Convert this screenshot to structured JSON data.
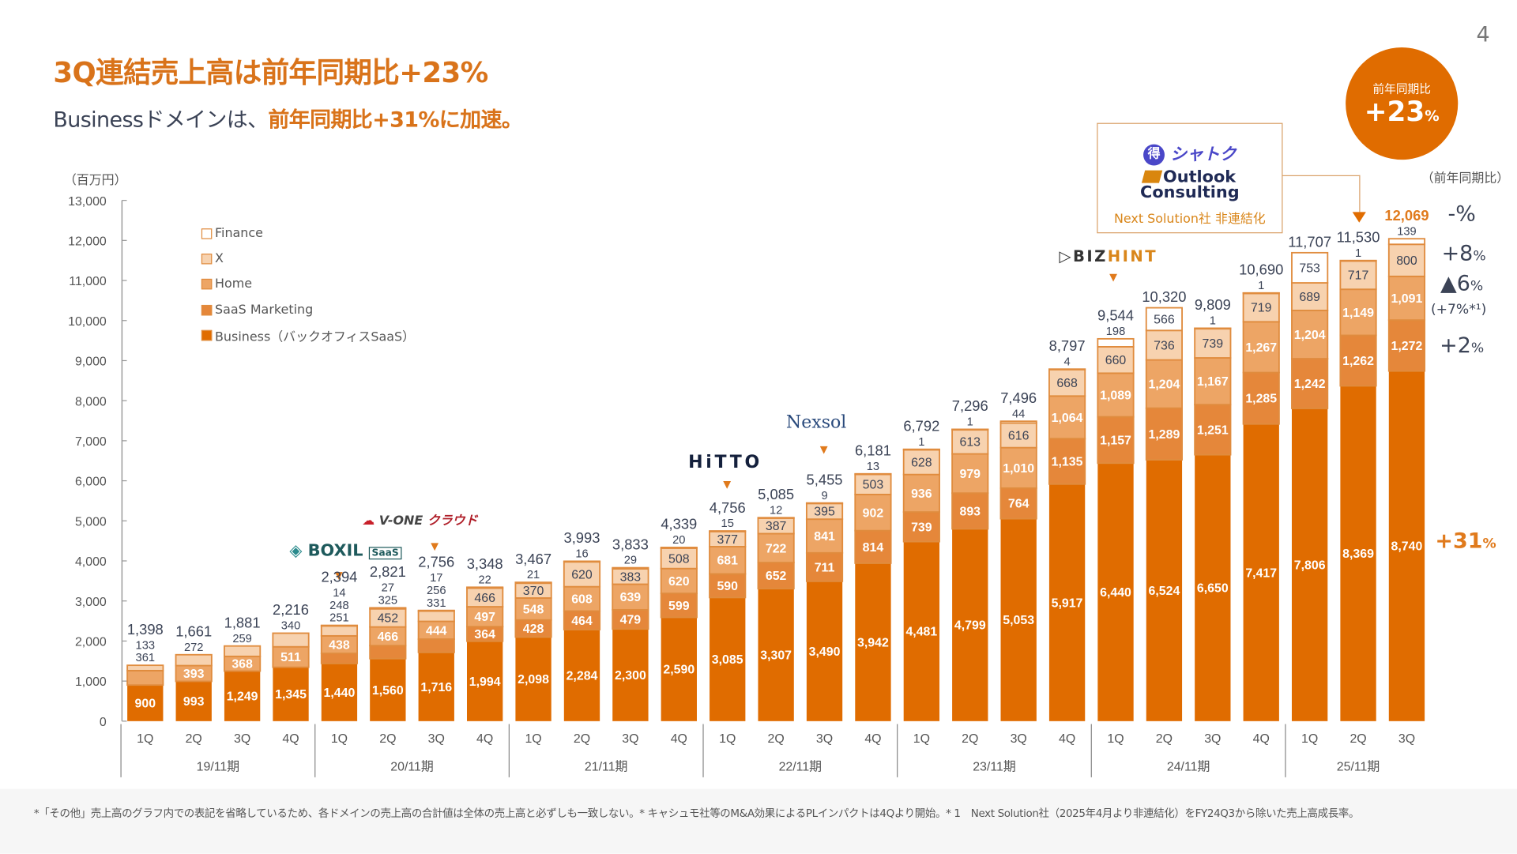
{
  "page_number": "4",
  "header": {
    "title": "3Q連結売上高は前年同期比+23%",
    "subtitle_prefix": "Businessドメインは、",
    "subtitle_highlight": "前年同期比+31%に加速。"
  },
  "badge": {
    "label": "前年同期比",
    "value": "+23",
    "unit": "%"
  },
  "callout": {
    "logo_shatoku_badge": "得",
    "logo_shatoku": "シャトク",
    "logo_outlook_1": "Outlook",
    "logo_outlook_2": "Consulting",
    "note": "Next Solution社 非連結化"
  },
  "logos": {
    "boxil": "BOXIL",
    "boxil_tag": "SaaS",
    "vone": "V-ONE",
    "vone_tag": "クラウド",
    "hitto": "HiTTO",
    "nexsol": "Nexsol",
    "bizhint_1": "BIZ",
    "bizhint_2": "HINT"
  },
  "yoy": {
    "header": "（前年同期比）",
    "finance": "-%",
    "x": "+8",
    "home": "▲6",
    "home_note": "(+7%*¹)",
    "saas": "+2",
    "business": "+31",
    "unit": "%"
  },
  "colors": {
    "business": "#E06C00",
    "saas_marketing": "#E5873A",
    "home": "#EDA565",
    "x": "#F7D2AF",
    "finance": "#FFFFFF",
    "accent": "#E06C00",
    "text": "#3b4356"
  },
  "footnote": "*「その他」売上高のグラフ内での表記を省略しているため、各ドメインの売上高の合計値は全体の売上高と必ずしも一致しない。* キャシュモ社等のM&A効果によるPLインパクトは4Qより開始。* 1　Next Solution社（2025年4月より非連結化）をFY24Q3から除いた売上高成長率。",
  "chart_data": {
    "type": "bar",
    "stacked": true,
    "ylabel": "（百万円）",
    "ylim": [
      0,
      13000
    ],
    "yticks": [
      "0",
      "1,000",
      "2,000",
      "3,000",
      "4,000",
      "5,000",
      "6,000",
      "7,000",
      "8,000",
      "9,000",
      "10,000",
      "11,000",
      "12,000",
      "13,000"
    ],
    "legend_position": "top-left",
    "legend": [
      "Finance",
      "X",
      "Home",
      "SaaS Marketing",
      "Business（バックオフィスSaaS）"
    ],
    "groups": [
      {
        "label": "19/11期",
        "quarters": [
          "1Q",
          "2Q",
          "3Q",
          "4Q"
        ]
      },
      {
        "label": "20/11期",
        "quarters": [
          "1Q",
          "2Q",
          "3Q",
          "4Q"
        ]
      },
      {
        "label": "21/11期",
        "quarters": [
          "1Q",
          "2Q",
          "3Q",
          "4Q"
        ]
      },
      {
        "label": "22/11期",
        "quarters": [
          "1Q",
          "2Q",
          "3Q",
          "4Q"
        ]
      },
      {
        "label": "23/11期",
        "quarters": [
          "1Q",
          "2Q",
          "3Q",
          "4Q"
        ]
      },
      {
        "label": "24/11期",
        "quarters": [
          "1Q",
          "2Q",
          "3Q",
          "4Q"
        ]
      },
      {
        "label": "25/11期",
        "quarters": [
          "1Q",
          "2Q",
          "3Q"
        ]
      }
    ],
    "totals": [
      "1,398",
      "1,661",
      "1,881",
      "2,216",
      "2,394",
      "2,821",
      "2,756",
      "3,348",
      "3,467",
      "3,993",
      "3,833",
      "4,339",
      "4,756",
      "5,085",
      "5,455",
      "6,181",
      "6,792",
      "7,296",
      "7,496",
      "8,797",
      "9,544",
      "10,320",
      "9,809",
      "10,690",
      "11,707",
      "11,530",
      "12,069"
    ],
    "series": [
      {
        "name": "Business（バックオフィスSaaS）",
        "key": "business",
        "values": [
          900,
          993,
          1249,
          1345,
          1440,
          1560,
          1716,
          1994,
          2098,
          2284,
          2300,
          2590,
          3085,
          3307,
          3490,
          3942,
          4481,
          4799,
          5053,
          5917,
          6440,
          6524,
          6650,
          7417,
          7806,
          8369,
          8740
        ]
      },
      {
        "name": "SaaS Marketing",
        "key": "saas_marketing",
        "values": [
          null,
          null,
          null,
          null,
          251,
          325,
          331,
          364,
          428,
          464,
          479,
          599,
          590,
          652,
          711,
          814,
          739,
          893,
          764,
          1135,
          1157,
          1289,
          1251,
          1285,
          1242,
          1262,
          1272
        ]
      },
      {
        "name": "Home",
        "key": "home",
        "values": [
          361,
          393,
          368,
          511,
          438,
          466,
          444,
          497,
          548,
          608,
          639,
          620,
          681,
          722,
          841,
          902,
          936,
          979,
          1010,
          1064,
          1089,
          1204,
          1167,
          1267,
          1204,
          1149,
          1091
        ]
      },
      {
        "name": "X",
        "key": "x",
        "values": [
          133,
          272,
          259,
          340,
          248,
          452,
          256,
          466,
          370,
          620,
          383,
          508,
          377,
          387,
          395,
          503,
          628,
          613,
          616,
          668,
          660,
          736,
          739,
          719,
          689,
          717,
          800
        ]
      },
      {
        "name": "Finance",
        "key": "finance",
        "values": [
          null,
          null,
          null,
          null,
          14,
          27,
          17,
          22,
          21,
          16,
          29,
          20,
          15,
          12,
          9,
          13,
          1,
          1,
          44,
          4,
          198,
          566,
          1,
          1,
          753,
          1,
          139
        ]
      }
    ]
  }
}
